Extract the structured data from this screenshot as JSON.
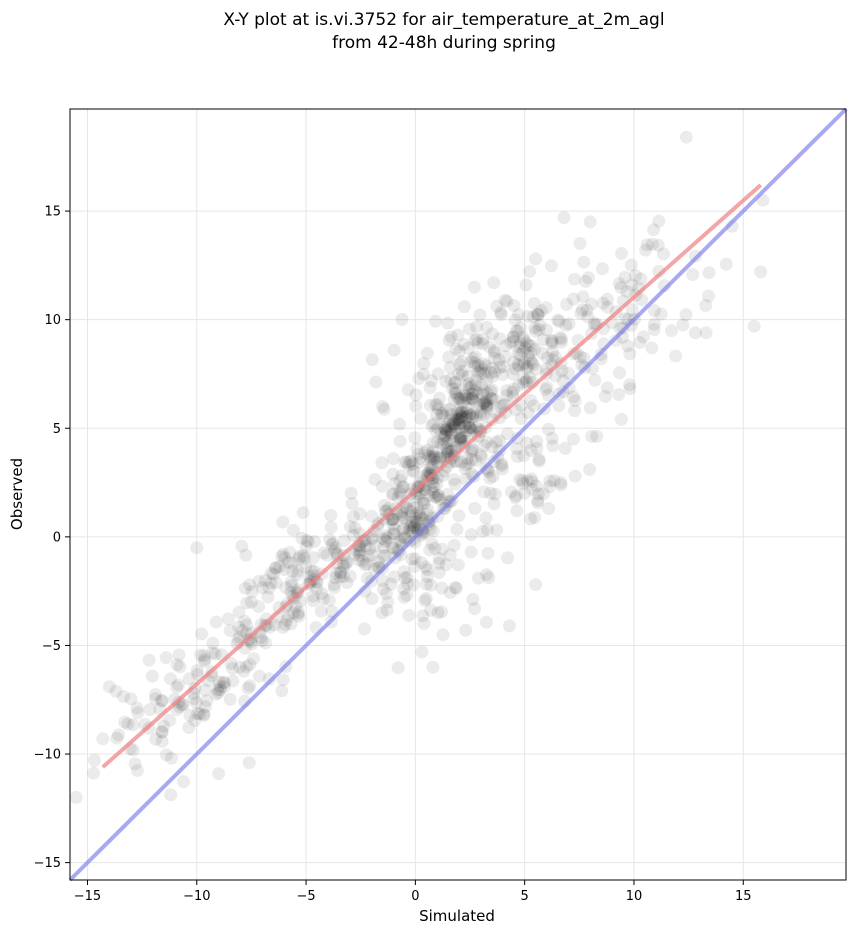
{
  "chart_data": {
    "type": "scatter",
    "title_line1": "X-Y plot at is.vi.3752 for air_temperature_at_2m_agl",
    "title_line2": "from 42-48h during spring",
    "xlabel": "Simulated",
    "ylabel": "Observed",
    "xlim": [
      -15.8,
      19.7
    ],
    "ylim": [
      -15.8,
      19.7
    ],
    "xticks": [
      -15,
      -10,
      -5,
      0,
      5,
      10,
      15
    ],
    "yticks": [
      -15,
      -10,
      -5,
      0,
      5,
      10,
      15
    ],
    "xtick_labels": [
      "−15",
      "−10",
      "−5",
      "0",
      "5",
      "10",
      "15"
    ],
    "ytick_labels": [
      "−15",
      "−10",
      "−5",
      "0",
      "5",
      "10",
      "15"
    ],
    "grid": true,
    "marker_color": "#000000",
    "marker_alpha": 0.08,
    "regression_line": {
      "color": "#f08080",
      "x": [
        -14.3,
        15.8
      ],
      "y": [
        -10.6,
        16.2
      ]
    },
    "identity_line": {
      "color": "#7a7af0",
      "x": [
        -15.8,
        19.7
      ],
      "y": [
        -15.8,
        19.7
      ]
    },
    "clusters": [
      {
        "cx": 2.2,
        "cy": 5.6,
        "sx": 0.8,
        "sy": 1.0,
        "rho": 0.5,
        "n": 140
      },
      {
        "cx": 1.0,
        "cy": 3.5,
        "sx": 1.2,
        "sy": 1.2,
        "rho": 0.5,
        "n": 110
      },
      {
        "cx": -0.2,
        "cy": 0.8,
        "sx": 1.0,
        "sy": 0.9,
        "rho": 0.4,
        "n": 80
      },
      {
        "cx": 3.5,
        "cy": 8.5,
        "sx": 2.0,
        "sy": 1.5,
        "rho": 0.5,
        "n": 130
      },
      {
        "cx": 6.5,
        "cy": 8.5,
        "sx": 2.2,
        "sy": 2.0,
        "rho": 0.6,
        "n": 110
      },
      {
        "cx": 5.0,
        "cy": 3.2,
        "sx": 1.6,
        "sy": 1.4,
        "rho": 0.5,
        "n": 80
      },
      {
        "cx": -3.0,
        "cy": -1.0,
        "sx": 2.0,
        "sy": 1.5,
        "rho": 0.6,
        "n": 120
      },
      {
        "cx": -6.0,
        "cy": -2.5,
        "sx": 1.6,
        "sy": 1.8,
        "rho": 0.5,
        "n": 90
      },
      {
        "cx": -9.5,
        "cy": -6.5,
        "sx": 1.8,
        "sy": 1.6,
        "rho": 0.6,
        "n": 80
      },
      {
        "cx": 0.5,
        "cy": -2.0,
        "sx": 1.6,
        "sy": 1.5,
        "rho": 0.3,
        "n": 60
      },
      {
        "cx": 10.5,
        "cy": 11.0,
        "sx": 2.0,
        "sy": 2.0,
        "rho": 0.5,
        "n": 45
      },
      {
        "cx": -12.0,
        "cy": -9.0,
        "sx": 1.5,
        "sy": 1.3,
        "rho": 0.5,
        "n": 25
      }
    ],
    "extra_points": [
      [
        12.4,
        18.4
      ],
      [
        15.5,
        9.7
      ],
      [
        15.8,
        12.2
      ],
      [
        15.9,
        15.5
      ],
      [
        13.3,
        9.4
      ],
      [
        -14.3,
        -9.3
      ],
      [
        -14.0,
        -6.9
      ],
      [
        -13.7,
        -7.1
      ],
      [
        -9.0,
        -10.9
      ],
      [
        -7.6,
        -10.4
      ],
      [
        5.5,
        -2.2
      ],
      [
        4.3,
        -4.1
      ],
      [
        0.8,
        -6.0
      ],
      [
        0.3,
        -5.3
      ],
      [
        2.3,
        -4.3
      ],
      [
        -12.7,
        -8.1
      ],
      [
        -10.0,
        -0.5
      ],
      [
        9.8,
        7.0
      ],
      [
        14.5,
        14.3
      ],
      [
        6.8,
        14.7
      ],
      [
        -1.5,
        6.0
      ],
      [
        -0.7,
        4.4
      ],
      [
        2.7,
        11.5
      ],
      [
        5.5,
        12.8
      ],
      [
        8.0,
        14.5
      ]
    ]
  }
}
